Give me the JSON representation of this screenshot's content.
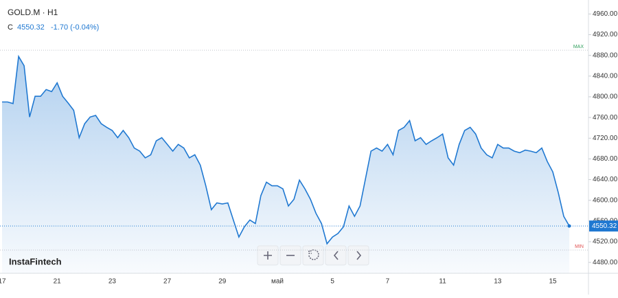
{
  "chart_data": {
    "type": "area",
    "symbol": "GOLD.M · H1",
    "close_label": "C",
    "close": "4550.32",
    "change": "-1.70 (-0.04%)",
    "watermark": "InstaFintech",
    "color": "#1f78d1",
    "last_price": {
      "value": 4550.32,
      "label": "4550.32"
    },
    "max_line": {
      "value": 4890,
      "label": "MAX",
      "color": "#2e9e5b"
    },
    "min_line": {
      "value": 4504,
      "label": "MIN",
      "color": "#e05050"
    },
    "ylim": [
      4459,
      4987
    ],
    "yticks": [
      {
        "value": 4480,
        "label": "4480.00"
      },
      {
        "value": 4520,
        "label": "4520.00"
      },
      {
        "value": 4560,
        "label": "4560.00"
      },
      {
        "value": 4600,
        "label": "4600.00"
      },
      {
        "value": 4640,
        "label": "4640.00"
      },
      {
        "value": 4680,
        "label": "4680.00"
      },
      {
        "value": 4720,
        "label": "4720.00"
      },
      {
        "value": 4760,
        "label": "4760.00"
      },
      {
        "value": 4800,
        "label": "4800.00"
      },
      {
        "value": 4840,
        "label": "4840.00"
      },
      {
        "value": 4880,
        "label": "4880.00"
      },
      {
        "value": 4920,
        "label": "4920.00"
      },
      {
        "value": 4960,
        "label": "4960.00"
      }
    ],
    "categories": [
      "17",
      null,
      null,
      null,
      null,
      null,
      null,
      null,
      null,
      null,
      "21",
      null,
      null,
      null,
      null,
      null,
      null,
      null,
      null,
      null,
      "23",
      null,
      null,
      null,
      null,
      null,
      null,
      null,
      null,
      null,
      "27",
      null,
      null,
      null,
      null,
      null,
      null,
      null,
      null,
      null,
      "29",
      null,
      null,
      null,
      null,
      null,
      null,
      null,
      null,
      null,
      "май",
      null,
      null,
      null,
      null,
      null,
      null,
      null,
      null,
      null,
      "5",
      null,
      null,
      null,
      null,
      null,
      null,
      null,
      null,
      null,
      "7",
      null,
      null,
      null,
      null,
      null,
      null,
      null,
      null,
      null,
      "11",
      null,
      null,
      null,
      null,
      null,
      null,
      null,
      null,
      null,
      "13",
      null,
      null,
      null,
      null,
      null,
      null,
      null,
      null,
      null,
      "15",
      null,
      null,
      null
    ],
    "values": [
      4790,
      4790,
      4787,
      4878,
      4860,
      4761,
      4801,
      4801,
      4814,
      4810,
      4827,
      4801,
      4788,
      4774,
      4721,
      4748,
      4761,
      4764,
      4748,
      4741,
      4735,
      4721,
      4735,
      4721,
      4701,
      4695,
      4682,
      4688,
      4715,
      4721,
      4708,
      4695,
      4708,
      4701,
      4682,
      4688,
      4668,
      4628,
      4582,
      4595,
      4593,
      4595,
      4562,
      4529,
      4549,
      4562,
      4555,
      4609,
      4635,
      4628,
      4628,
      4622,
      4589,
      4602,
      4639,
      4622,
      4602,
      4575,
      4555,
      4516,
      4529,
      4536,
      4549,
      4589,
      4569,
      4589,
      4642,
      4695,
      4701,
      4695,
      4708,
      4688,
      4735,
      4741,
      4754,
      4715,
      4721,
      4708,
      4715,
      4721,
      4728,
      4682,
      4668,
      4708,
      4735,
      4741,
      4728,
      4701,
      4688,
      4682,
      4708,
      4701,
      4701,
      4695,
      4692,
      4697,
      4695,
      4692,
      4701,
      4675,
      4655,
      4615,
      4569,
      4550.32
    ]
  }
}
